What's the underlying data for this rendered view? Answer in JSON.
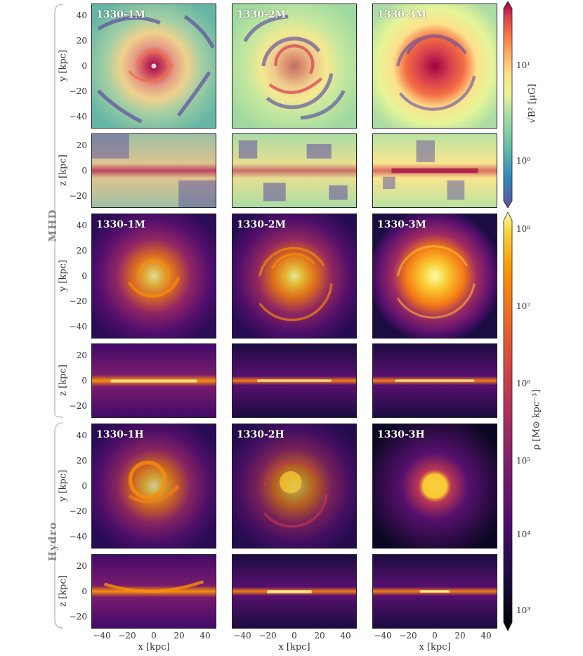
{
  "groups": {
    "mhd": "MHD",
    "hydro": "Hydro"
  },
  "panel_labels": {
    "row1": [
      "1330-1M",
      "1330-2M",
      "1330-3M"
    ],
    "row3": [
      "1330-1M",
      "1330-2M",
      "1330-3M"
    ],
    "row5": [
      "1330-1H",
      "1330-2H",
      "1330-3H"
    ]
  },
  "axis": {
    "ylabel_face": "y [kpc]",
    "ylabel_edge": "z [kpc]",
    "xlabel": "x [kpc]",
    "face_ticks": [
      "40",
      "20",
      "0",
      "−20",
      "−40"
    ],
    "edge_ticks": [
      "20",
      "0",
      "−20"
    ],
    "x_ticks": [
      "−40",
      "−20",
      "0",
      "20",
      "40"
    ]
  },
  "colorbars": {
    "b_field": {
      "label": "√B² [μG]",
      "ticks": [
        "10¹",
        "10⁰"
      ],
      "cmap": "spectral",
      "scale": "log"
    },
    "density": {
      "label": "ρ [M⊙ kpc⁻³]",
      "ticks": [
        "10⁸",
        "10⁷",
        "10⁶",
        "10⁵",
        "10⁴",
        "10³"
      ],
      "cmap": "inferno",
      "scale": "log"
    }
  }
}
